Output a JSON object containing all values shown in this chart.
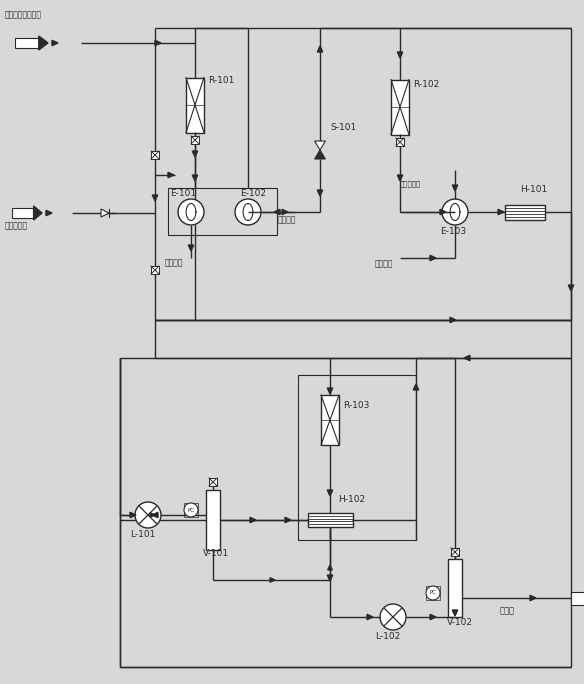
{
  "bg_color": "#d8d8d8",
  "line_color": "#2a2a2a",
  "label_top_pipe": "粗焦炉煤气脱硫气",
  "label_left_pipe": "净化焦炉气",
  "label_product": "产品气",
  "label_steam1": "过热蕲汽",
  "label_coolwater1": "循环冷水",
  "label_steam_valve": "来蕲汽管网",
  "label_coolwater2": "循环冷水",
  "R101": "R-101",
  "R102": "R-102",
  "R103": "R-103",
  "S101": "S-101",
  "E101": "E-101",
  "E102": "E-102",
  "E103": "E-103",
  "H101": "H-101",
  "H102": "H-102",
  "L101": "L-101",
  "L102": "L-102",
  "V101": "V-101",
  "V102": "V-102"
}
